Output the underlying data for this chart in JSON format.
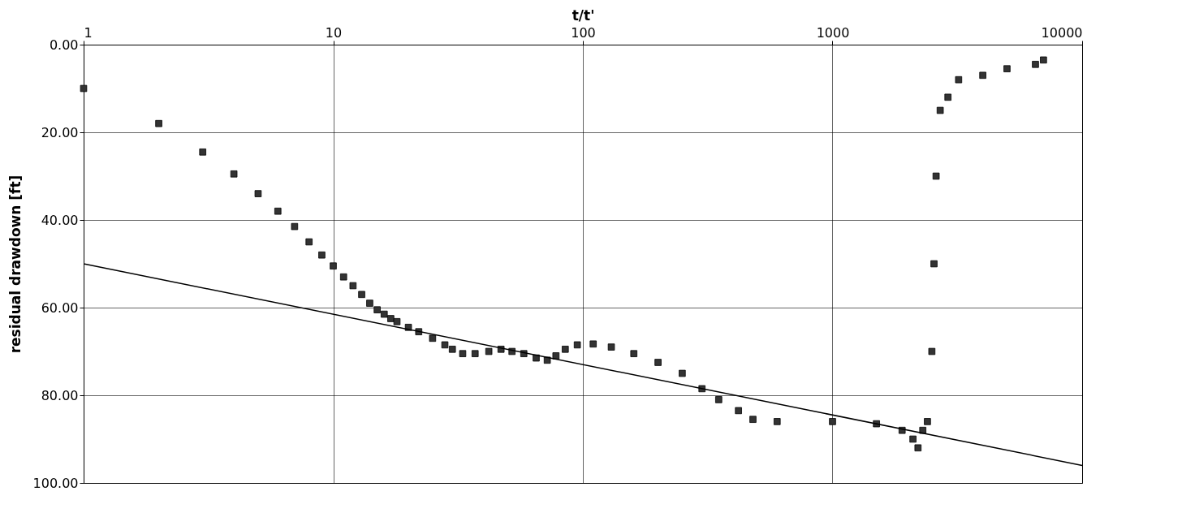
{
  "chart_data": {
    "type": "scatter",
    "xlabel": "t/t'",
    "ylabel": "residual drawdown [ft]",
    "log": "x",
    "grid": true,
    "xlim": [
      1,
      10000
    ],
    "xticks": [
      1,
      10,
      100,
      1000,
      10000
    ],
    "ylim": [
      100,
      0
    ],
    "yticks": [
      {
        "value": 0,
        "label": "0.00"
      },
      {
        "value": 20,
        "label": "20.00"
      },
      {
        "value": 40,
        "label": "40.00"
      },
      {
        "value": 60,
        "label": "60.00"
      },
      {
        "value": 80,
        "label": "80.00"
      },
      {
        "value": 100,
        "label": "100.00"
      }
    ],
    "series": [
      {
        "marker": "square",
        "color": "#333333",
        "x": [
          1,
          2,
          3,
          4,
          5,
          6,
          7,
          8,
          9,
          10,
          11,
          12,
          13,
          14,
          15,
          16,
          17,
          18,
          20,
          22,
          25,
          28,
          30,
          33,
          37,
          42,
          47,
          52,
          58,
          65,
          72,
          78,
          85,
          95,
          110,
          130,
          160,
          200,
          250,
          300,
          350,
          420,
          480,
          600,
          1000,
          1500,
          1900,
          2100,
          2200,
          2300,
          2400,
          2500,
          2550,
          2600,
          2700,
          2900,
          3200,
          4000,
          5000,
          6500,
          7000
        ],
        "values": [
          10,
          18,
          24.5,
          29.5,
          34,
          38,
          41.5,
          45,
          48,
          50.5,
          53,
          55,
          57,
          59,
          60.5,
          61.5,
          62.5,
          63.2,
          64.5,
          65.5,
          67,
          68.5,
          69.5,
          70.5,
          70.5,
          70,
          69.5,
          70,
          70.5,
          71.5,
          72,
          71,
          69.5,
          68.5,
          68.3,
          69,
          70.5,
          72.5,
          75,
          78.5,
          81,
          83.5,
          85.5,
          86,
          86,
          86.5,
          88,
          90,
          92,
          88,
          86,
          70,
          50,
          30,
          15,
          12,
          8,
          7,
          5.5,
          4.5,
          3.5
        ]
      },
      {
        "type": "line",
        "color": "#000000",
        "x": [
          1,
          10000
        ],
        "values": [
          50,
          96
        ]
      }
    ]
  }
}
